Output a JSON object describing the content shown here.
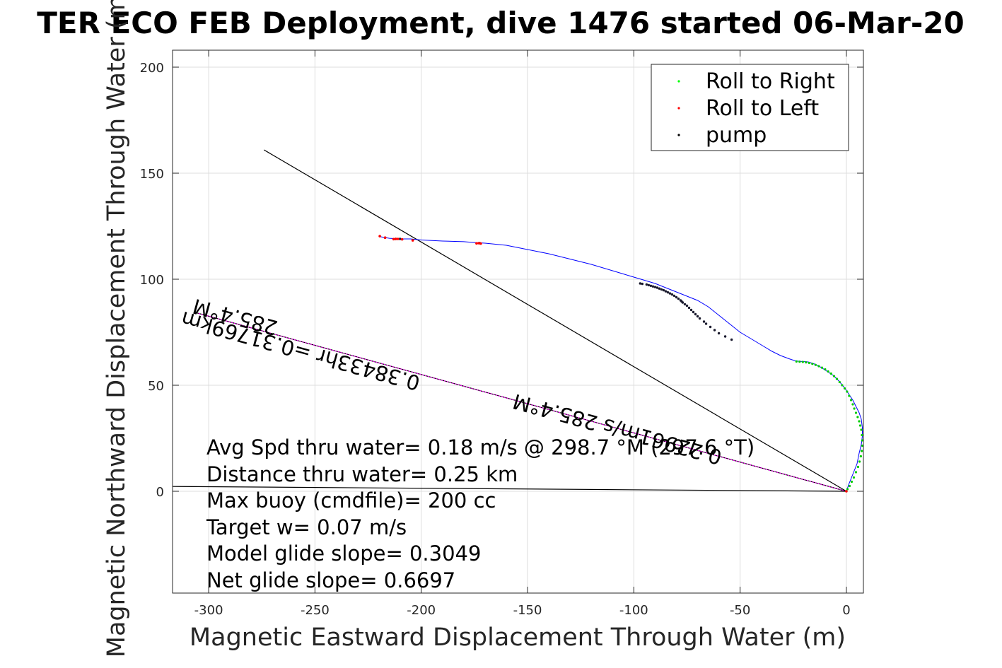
{
  "chart_data": {
    "type": "scatter",
    "title": "TER ECO FEB Deployment, dive 1476 started 06-Mar-20",
    "xlabel": "Magnetic Eastward Displacement Through Water (m)",
    "ylabel": "Magnetic Northward Displacement Through Water (m)",
    "xlim": [
      -317,
      8
    ],
    "ylim": [
      -48,
      208
    ],
    "xticks": [
      -300,
      -250,
      -200,
      -150,
      -100,
      -50,
      0
    ],
    "yticks": [
      0,
      50,
      100,
      150,
      200
    ],
    "xtick_labels": [
      "-300",
      "-250",
      "-200",
      "-150",
      "-100",
      "-50",
      "0"
    ],
    "ytick_labels": [
      "0",
      "50",
      "100",
      "150",
      "200"
    ],
    "grid": true,
    "legend_position": "top-right",
    "legend": [
      {
        "label": "Roll to Right",
        "color": "#00ff00"
      },
      {
        "label": "Roll to Left",
        "color": "#ff0000"
      },
      {
        "label": "pump",
        "color": "#000000"
      }
    ],
    "track": {
      "name": "track",
      "color": "#0000ff",
      "x": [
        0,
        1,
        3,
        5,
        6,
        7,
        7.5,
        7.5,
        7,
        6,
        4.5,
        3,
        1,
        -1,
        -3.5,
        -6,
        -9,
        -12,
        -15,
        -18,
        -21,
        -24,
        -27,
        -31,
        -35,
        -40,
        -45,
        -50,
        -55,
        -60,
        -65,
        -70,
        -75,
        -80,
        -85,
        -90,
        -95,
        -100,
        -105,
        -110,
        -115,
        -120,
        -130,
        -140,
        -150,
        -155,
        -160,
        -165,
        -170,
        -175,
        -180,
        -190,
        -200,
        -205,
        -210,
        -215,
        -219
      ],
      "y": [
        0,
        3,
        8,
        13,
        18,
        22,
        26,
        30,
        34,
        37,
        40,
        43,
        46,
        49,
        52,
        54.5,
        56.5,
        58.5,
        60,
        61,
        61.2,
        61.5,
        62.5,
        64,
        66,
        69,
        72,
        75,
        79,
        83,
        87,
        90,
        92,
        94,
        96,
        98,
        99.5,
        101,
        102.5,
        104,
        105.5,
        107,
        109.5,
        112,
        114,
        115,
        116,
        116.5,
        117,
        117.3,
        117.7,
        118,
        118.5,
        119,
        119,
        119.3,
        120
      ]
    },
    "roll_right": {
      "x": [
        0.5,
        1.5,
        2.5,
        3.5,
        4.5,
        5.5,
        6.2,
        6.8,
        7.2,
        7.5,
        7.5,
        7.3,
        7,
        6.5,
        6,
        5.3,
        4.5,
        3.7,
        3,
        2.2,
        1.3,
        0.3,
        -0.8,
        -2,
        -3.2,
        -4.5,
        -5.8,
        -7.2,
        -8.6,
        -10,
        -11.5,
        -13,
        -14.5,
        -16,
        -17.5,
        -19,
        -20.5,
        -22,
        -23.5
      ],
      "y": [
        1,
        2.5,
        4.5,
        6.5,
        9,
        11.5,
        14,
        16.5,
        19,
        21.5,
        24,
        26.5,
        29,
        31,
        33,
        35,
        37,
        39,
        41,
        43,
        45,
        47,
        48.5,
        50,
        51.5,
        53,
        54.3,
        55.5,
        56.5,
        57.5,
        58.3,
        59,
        59.6,
        60.1,
        60.5,
        60.8,
        61,
        61.1,
        61.2
      ]
    },
    "roll_left": {
      "x": [
        0,
        -172,
        -173,
        -174,
        -204,
        -209,
        -211,
        -212,
        -213,
        -217,
        -219.5
      ],
      "y": [
        0,
        116.8,
        117,
        116.9,
        118.3,
        118.8,
        119,
        119,
        118.9,
        119.6,
        120.3
      ]
    },
    "pump": {
      "x": [
        -54,
        -57,
        -60,
        -62,
        -64,
        -66,
        -67,
        -69,
        -70,
        -71,
        -72,
        -73,
        -74,
        -75,
        -76,
        -77,
        -77.5,
        -78,
        -79,
        -80,
        -81,
        -82,
        -83,
        -84,
        -85,
        -86,
        -87,
        -88,
        -89,
        -90,
        -91,
        -92,
        -93,
        -94,
        -96,
        -97,
        -172.5,
        -204,
        -210,
        -212,
        -217
      ],
      "y": [
        71.5,
        73,
        74.5,
        76,
        77.5,
        79,
        80,
        81.5,
        82.5,
        83.5,
        84.5,
        85.5,
        86.5,
        87.5,
        88.2,
        89,
        89.5,
        90,
        90.8,
        91.5,
        92.2,
        92.8,
        93.3,
        93.8,
        94.3,
        94.8,
        95.2,
        95.6,
        96,
        96.3,
        96.6,
        96.9,
        97.2,
        97.5,
        97.8,
        98,
        117,
        118.4,
        119,
        119,
        119.6
      ]
    },
    "lines": [
      {
        "name": "heading-line",
        "color": "#000000",
        "x": [
          0,
          -307
        ],
        "y": [
          0,
          84.5
        ]
      },
      {
        "name": "heading-line-overlay",
        "color": "#ff00ff",
        "x": [
          0,
          -307
        ],
        "y": [
          0,
          84.5
        ]
      },
      {
        "name": "net-displacement-line",
        "color": "#000000",
        "x": [
          0,
          -274
        ],
        "y": [
          0,
          161
        ]
      },
      {
        "name": "current-line",
        "color": "#000000",
        "x": [
          0,
          -320
        ],
        "y": [
          0,
          2.3
        ]
      }
    ],
    "rotated_labels": [
      {
        "text": "285.4°M",
        "x": -267,
        "y": 80,
        "angle": 195.4
      },
      {
        "text": "0.38433hr =0.31769km",
        "x": -200,
        "y": 54,
        "angle": 195.4
      },
      {
        "text": "0.22961m/s 285.4°M",
        "x": -58,
        "y": 19,
        "angle": 195.4
      }
    ]
  },
  "annotations": [
    "Avg Spd thru water=  0.18 m/s @ 298.7 °M (297.6 °T)",
    "Distance thru water=  0.25 km",
    "Max buoy (cmdfile)= 200 cc",
    "Target w= 0.07 m/s",
    "Model glide slope= 0.3049",
    "Net glide slope= 0.6697"
  ]
}
